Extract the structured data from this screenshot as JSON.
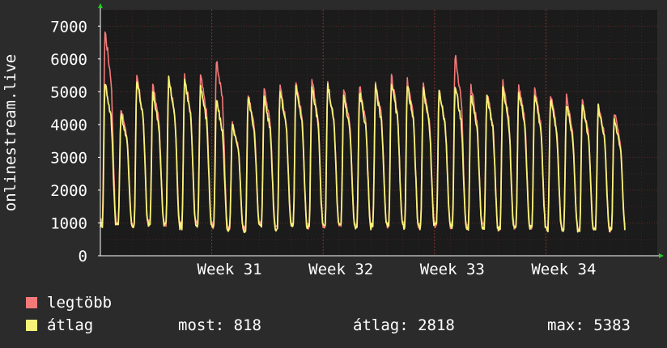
{
  "colors": {
    "background": "#2b2b2b",
    "plot_background": "#1b1b1b",
    "grid": "#5a2a2a",
    "axis": "#ffffff",
    "arrow": "#22cc22",
    "max_series": "#f47a7a",
    "avg_series": "#f7f27a"
  },
  "chart_data": {
    "type": "line",
    "ylabel": "onlinestream.live",
    "ylim": [
      0,
      7500
    ],
    "y_ticks": [
      0,
      1000,
      2000,
      3000,
      4000,
      5000,
      6000,
      7000
    ],
    "x_range_days": [
      0,
      35
    ],
    "x_tick_days": [
      7,
      14,
      21,
      28
    ],
    "x_tick_labels": [
      "Week 31",
      "Week 32",
      "Week 33",
      "Week 34"
    ],
    "grid": true,
    "legend_position": "bottom-left",
    "series": [
      {
        "name": "legtöbb",
        "color": "#f47a7a",
        "daily_peaks": [
          6850,
          4500,
          5450,
          5200,
          5450,
          5500,
          5500,
          6000,
          4100,
          4950,
          5100,
          5150,
          5300,
          5350,
          5250,
          5100,
          5150,
          5300,
          5450,
          5350,
          5200,
          5100,
          6130,
          5150,
          5000,
          5300,
          5200,
          5100,
          4900,
          4850,
          4700,
          4650,
          4400
        ],
        "daily_troughs": [
          1000,
          1000,
          950,
          1000,
          1000,
          950,
          1000,
          950,
          850,
          800,
          950,
          900,
          1000,
          900,
          950,
          950,
          900,
          950,
          950,
          950,
          900,
          950,
          950,
          900,
          950,
          850,
          900,
          900,
          850,
          850,
          850,
          850,
          800
        ]
      },
      {
        "name": "átlag",
        "color": "#f7f27a",
        "daily_peaks": [
          5300,
          4350,
          5400,
          5000,
          5400,
          5400,
          5200,
          4750,
          4000,
          4850,
          4850,
          5050,
          5200,
          5150,
          5200,
          4900,
          5000,
          5150,
          5300,
          5200,
          5100,
          5050,
          5200,
          4950,
          4900,
          5100,
          5050,
          4950,
          4800,
          4650,
          4600,
          4550,
          4200
        ],
        "daily_troughs": [
          950,
          950,
          900,
          950,
          950,
          900,
          950,
          900,
          800,
          780,
          900,
          850,
          950,
          850,
          900,
          900,
          850,
          900,
          900,
          900,
          850,
          900,
          900,
          850,
          900,
          800,
          850,
          850,
          800,
          800,
          800,
          800,
          780
        ]
      }
    ]
  },
  "legend": {
    "max_label": "legtöbb",
    "avg_label": "átlag"
  },
  "stats": {
    "current": "most: 818",
    "average": "átlag: 2818",
    "maximum": "max: 5383"
  }
}
